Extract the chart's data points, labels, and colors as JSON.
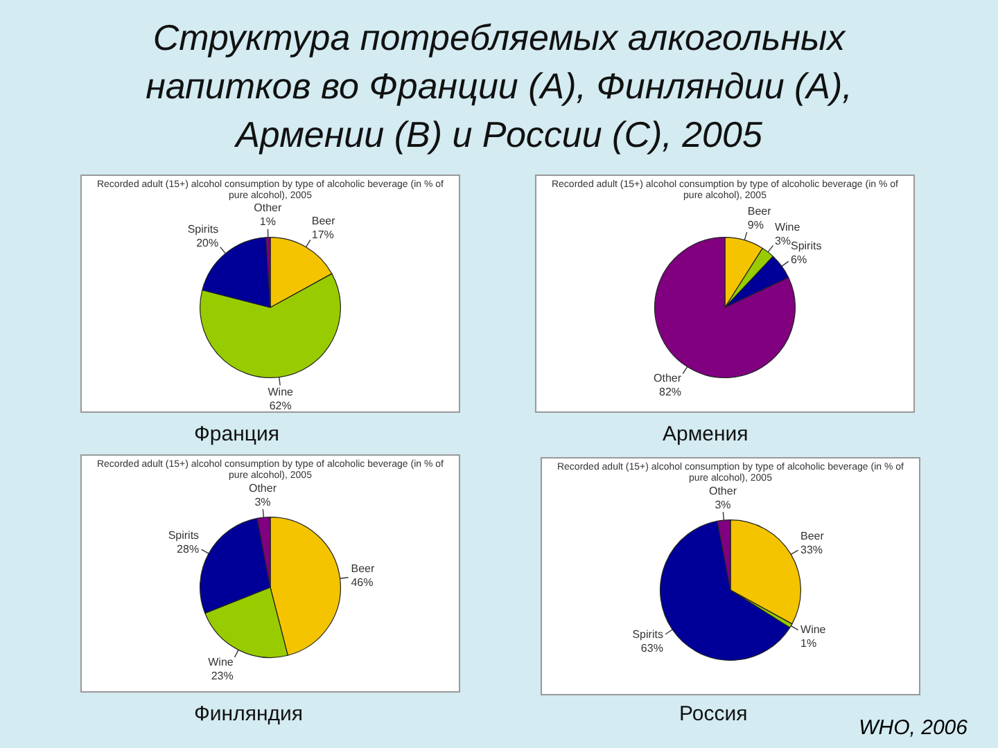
{
  "chart_data": [
    {
      "type": "other",
      "title": "Структура потребляемых алкогольных напитков во Франции (А), Финляндии (А), Армении (В) и России (С), 2005",
      "annotations": [
        "WHO, 2006"
      ]
    },
    {
      "type": "pie",
      "title": "Recorded adult (15+) alcohol consumption by type of alcoholic beverage (in % of pure alcohol), 2005",
      "xlabel": "Франция",
      "categories": [
        "Beer",
        "Wine",
        "Spirits",
        "Other"
      ],
      "values": [
        17,
        62,
        20,
        1
      ],
      "value_labels": [
        "17%",
        "62%",
        "20%",
        "1%"
      ],
      "colors": [
        "#f5c400",
        "#99cc00",
        "#000099",
        "#800080"
      ],
      "legend": false
    },
    {
      "type": "pie",
      "title": "Recorded adult (15+) alcohol consumption by type of alcoholic beverage (in % of pure alcohol), 2005",
      "xlabel": "Армения",
      "categories": [
        "Beer",
        "Wine",
        "Spirits",
        "Other"
      ],
      "values": [
        9,
        3,
        6,
        82
      ],
      "value_labels": [
        "9%",
        "3%",
        "6%",
        "82%"
      ],
      "colors": [
        "#f5c400",
        "#99cc00",
        "#000099",
        "#800080"
      ],
      "legend": false
    },
    {
      "type": "pie",
      "title": "Recorded adult (15+) alcohol consumption by type of alcoholic beverage (in % of pure alcohol), 2005",
      "xlabel": "Финляндия",
      "categories": [
        "Beer",
        "Wine",
        "Spirits",
        "Other"
      ],
      "values": [
        46,
        23,
        28,
        3
      ],
      "value_labels": [
        "46%",
        "23%",
        "28%",
        "3%"
      ],
      "colors": [
        "#f5c400",
        "#99cc00",
        "#000099",
        "#800080"
      ],
      "legend": false
    },
    {
      "type": "pie",
      "title": "Recorded adult (15+) alcohol consumption by type of alcoholic beverage (in % of pure alcohol), 2005",
      "xlabel": "Россия",
      "categories": [
        "Beer",
        "Wine",
        "Spirits",
        "Other"
      ],
      "values": [
        33,
        1,
        63,
        3
      ],
      "value_labels": [
        "33%",
        "1%",
        "63%",
        "3%"
      ],
      "colors": [
        "#f5c400",
        "#99cc00",
        "#000099",
        "#800080"
      ],
      "legend": false
    }
  ]
}
